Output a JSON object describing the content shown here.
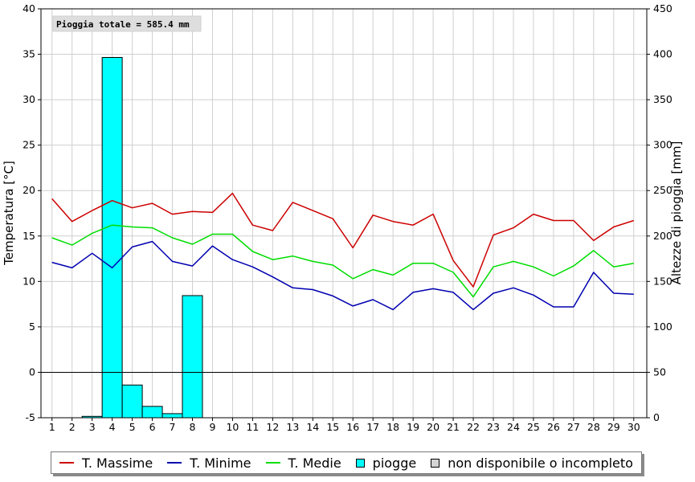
{
  "chart_data": {
    "type": "bar+line",
    "annotation": "Pioggia totale = 585.4 mm",
    "y_left_label": "Temperatura [°C]",
    "y_right_label": "Altezze di pioggia [mm]",
    "y_left_lim": [
      -5,
      40
    ],
    "y_right_lim": [
      0,
      450
    ],
    "y_left_ticks": [
      "-5",
      "0",
      "5",
      "10",
      "15",
      "20",
      "25",
      "30",
      "35",
      "40"
    ],
    "y_right_ticks": [
      "0",
      "50",
      "100",
      "150",
      "200",
      "250",
      "300",
      "350",
      "400",
      "450"
    ],
    "x": [
      "1",
      "2",
      "3",
      "4",
      "5",
      "6",
      "7",
      "8",
      "9",
      "10",
      "11",
      "12",
      "13",
      "14",
      "15",
      "16",
      "17",
      "18",
      "19",
      "20",
      "21",
      "22",
      "23",
      "24",
      "25",
      "26",
      "27",
      "28",
      "29",
      "30"
    ],
    "grid": true,
    "series": [
      {
        "name": "T. Massime",
        "color": "#cc0000",
        "kind": "line",
        "values": [
          19.1,
          16.6,
          17.8,
          18.9,
          18.1,
          18.6,
          17.4,
          17.7,
          17.6,
          19.7,
          16.2,
          15.6,
          18.7,
          17.8,
          16.9,
          13.7,
          17.3,
          16.6,
          16.2,
          17.4,
          12.3,
          9.4,
          15.1,
          15.9,
          17.4,
          16.7,
          16.7,
          14.5,
          16.0,
          16.7
        ]
      },
      {
        "name": "T. Minime",
        "color": "#0000b0",
        "kind": "line",
        "values": [
          12.1,
          11.5,
          13.1,
          11.5,
          13.8,
          14.4,
          12.2,
          11.7,
          13.9,
          12.4,
          11.6,
          10.5,
          9.3,
          9.1,
          8.4,
          7.3,
          8.0,
          6.9,
          8.8,
          9.2,
          8.8,
          6.9,
          8.7,
          9.3,
          8.5,
          7.2,
          7.2,
          11.0,
          8.7,
          8.6
        ]
      },
      {
        "name": "T. Medie",
        "color": "#00dd00",
        "kind": "line",
        "values": [
          14.8,
          14.0,
          15.3,
          16.2,
          16.0,
          15.9,
          14.8,
          14.1,
          15.2,
          15.2,
          13.3,
          12.4,
          12.8,
          12.2,
          11.8,
          10.3,
          11.3,
          10.7,
          12.0,
          12.0,
          11.0,
          8.3,
          11.6,
          12.2,
          11.6,
          10.6,
          11.7,
          13.4,
          11.6,
          12.0
        ]
      },
      {
        "name": "piogge",
        "color": "#00ffff",
        "kind": "bar",
        "axis": "right",
        "values": [
          0,
          0,
          1.5,
          396.5,
          36.0,
          12.5,
          4.5,
          134.4,
          0,
          0,
          0,
          0,
          0,
          0,
          0,
          0,
          0,
          0,
          0,
          0,
          0,
          0,
          0,
          0,
          0,
          0,
          0,
          0,
          0,
          0
        ]
      }
    ],
    "legend": [
      {
        "label": "T. Massime",
        "marker": "line",
        "color": "#cc0000"
      },
      {
        "label": "T. Minime",
        "marker": "line",
        "color": "#0000b0"
      },
      {
        "label": "T. Medie",
        "marker": "line",
        "color": "#00dd00"
      },
      {
        "label": "piogge",
        "marker": "box",
        "color": "#00ffff"
      },
      {
        "label": "non disponibile o incompleto",
        "marker": "box",
        "color": "#d4d4d4"
      }
    ],
    "legend_position": "bottom"
  }
}
